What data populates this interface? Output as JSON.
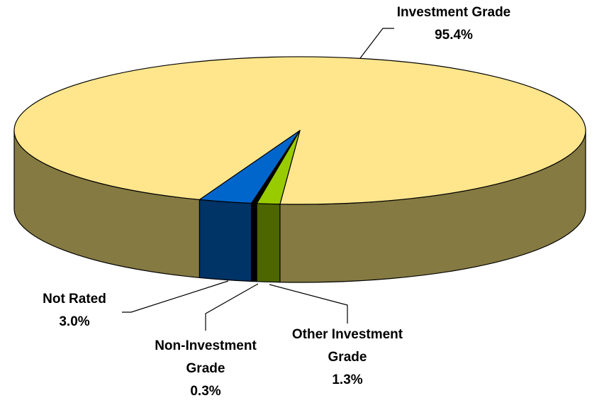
{
  "chart_data": {
    "type": "pie3d",
    "categories": [
      "Investment Grade",
      "Not Rated",
      "Non-Investment Grade",
      "Other Investment Grade"
    ],
    "values": [
      95.4,
      3.0,
      0.3,
      1.3
    ],
    "value_labels": [
      "95.4%",
      "3.0%",
      "0.3%",
      "1.3%"
    ],
    "colors": [
      "#FFE68C",
      "#0066CC",
      "#000000",
      "#99CC00"
    ],
    "side_colors": [
      "#857A42",
      "#003366",
      "#000000",
      "#4D6600"
    ]
  }
}
